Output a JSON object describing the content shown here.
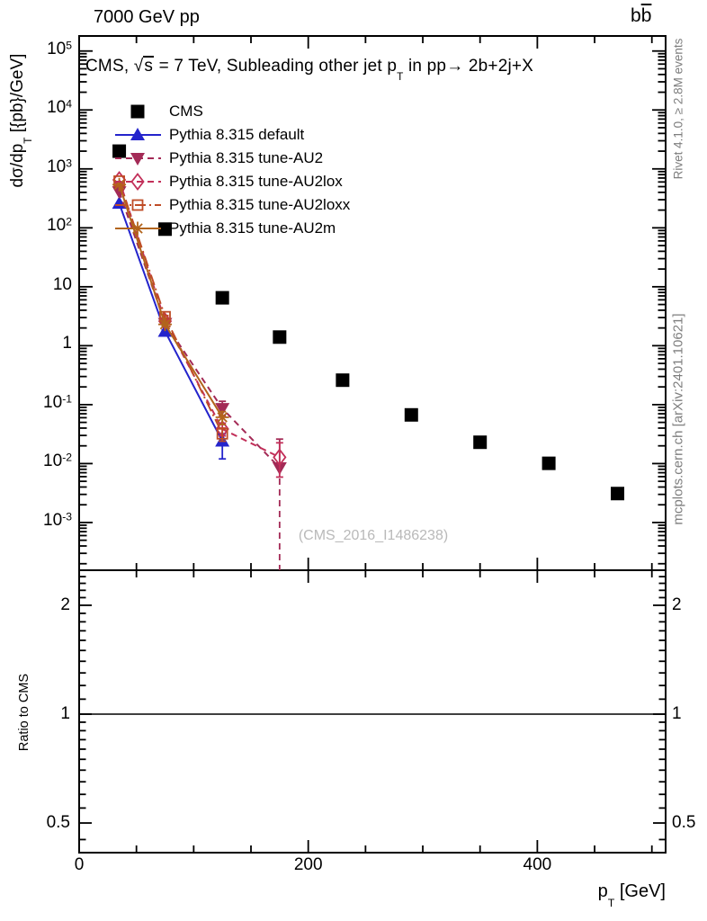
{
  "header": {
    "beam_energy": "7000 GeV pp",
    "process_b": "b",
    "process_bbar": "b"
  },
  "plot_title": {
    "p1": "CMS, ",
    "sqrt_sym": "√",
    "sqrt_arg": "s",
    "p2": " = 7 TeV, Subleading other jet p",
    "sub": "T",
    "p3": " in pp",
    "arrow": "→",
    "p4": " 2b+2j+X"
  },
  "y_axis": {
    "t1": "dσ/dp",
    "sub": "T",
    "t2": " [{pb}/GeV]"
  },
  "x_axis": {
    "t1": "p",
    "sub": "T",
    "t2": " [GeV]",
    "tick_labels": [
      {
        "label": "0",
        "value": 0
      },
      {
        "label": "200",
        "value": 200
      },
      {
        "label": "400",
        "value": 400
      }
    ]
  },
  "main_y_tick_labels": [
    {
      "base": "10",
      "exp": "5",
      "value": 100000
    },
    {
      "base": "10",
      "exp": "4",
      "value": 10000
    },
    {
      "base": "10",
      "exp": "3",
      "value": 1000
    },
    {
      "base": "10",
      "exp": "2",
      "value": 100
    },
    {
      "base": "10",
      "exp": "",
      "value": 10
    },
    {
      "base": "1",
      "exp": "",
      "value": 1
    },
    {
      "base": "10",
      "exp": "-1",
      "value": 0.1
    },
    {
      "base": "10",
      "exp": "-2",
      "value": 0.01
    },
    {
      "base": "10",
      "exp": "-3",
      "value": 0.001
    }
  ],
  "ratio_panel": {
    "ylabel": "Ratio to CMS",
    "tick_labels": [
      {
        "label": "2",
        "value": 2
      },
      {
        "label": "1",
        "value": 1
      },
      {
        "label": "0.5",
        "value": 0.5
      }
    ],
    "reference_line": 1
  },
  "side_notes": {
    "top": "Rivet 4.1.0, ≥ 2.8M events",
    "bottom": "mcplots.cern.ch [arXiv:2401.10621]"
  },
  "watermark": "(CMS_2016_I1486238)",
  "chart_data": {
    "type": "scatter",
    "title": "CMS, √s = 7 TeV, Subleading other jet pT in pp → 2b+2j+X",
    "xlabel": "pT [GeV]",
    "ylabel": "dσ/dpT [{pb}/GeV]",
    "xlim": [
      0,
      512
    ],
    "ylim": [
      0.000155,
      180000.0
    ],
    "yscale": "log",
    "grid": false,
    "legend_position": "top-left",
    "ratio": {
      "ylabel": "Ratio to CMS",
      "ylim": [
        0.414,
        2.5
      ],
      "yscale": "log",
      "reference_line": 1
    },
    "series": [
      {
        "name": "CMS",
        "marker": "square-filled",
        "color": "#000000",
        "line": "none",
        "x": [
          35,
          75,
          125,
          175,
          230,
          290,
          350,
          410,
          470
        ],
        "y": [
          2000,
          95,
          6.5,
          1.4,
          0.26,
          0.067,
          0.023,
          0.0101,
          0.0031
        ]
      },
      {
        "name": "Pythia 8.315 default",
        "marker": "triangle-up",
        "color": "#2424cc",
        "line": "solid",
        "x": [
          35,
          75,
          125
        ],
        "y": [
          260,
          1.75,
          0.024
        ],
        "yerr_lo": [
          0,
          0.09,
          0.012
        ],
        "yerr_hi": [
          0,
          0.09,
          0.008
        ]
      },
      {
        "name": "Pythia 8.315 tune-AU2",
        "marker": "triangle-down",
        "color": "#a32a56",
        "line": "dashed",
        "x": [
          35,
          75,
          125,
          175
        ],
        "y": [
          410,
          2.4,
          0.086,
          0.0085
        ],
        "yerr_lo": [
          0,
          0.12,
          0.021,
          0.0085
        ],
        "yerr_hi": [
          0,
          0.12,
          0.028,
          0.0175
        ]
      },
      {
        "name": "Pythia 8.315 tune-AU2lox",
        "marker": "diamond-open",
        "color": "#c22f59",
        "line": "dashed",
        "x": [
          35,
          75,
          125,
          175
        ],
        "y": [
          650,
          2.6,
          0.0385,
          0.0128
        ],
        "yerr_lo": [
          0,
          0.13,
          0.009,
          0.0069
        ],
        "yerr_hi": [
          0,
          0.13,
          0.01,
          0.0097
        ]
      },
      {
        "name": "Pythia 8.315 tune-AU2loxx",
        "marker": "square-open",
        "color": "#bf4c26",
        "line": "dashdot",
        "x": [
          35,
          75,
          125
        ],
        "y": [
          620,
          3.1,
          0.032
        ],
        "yerr_lo": [
          0,
          0.15,
          0.008
        ],
        "yerr_hi": [
          0,
          0.15,
          0.008
        ]
      },
      {
        "name": "Pythia 8.315 tune-AU2m",
        "marker": "star",
        "color": "#b2641c",
        "line": "solid",
        "x": [
          35,
          75,
          125
        ],
        "y": [
          540,
          2.3,
          0.061
        ],
        "yerr_lo": [
          0,
          0.12,
          0.015
        ],
        "yerr_hi": [
          0,
          0.12,
          0.015
        ]
      }
    ]
  }
}
